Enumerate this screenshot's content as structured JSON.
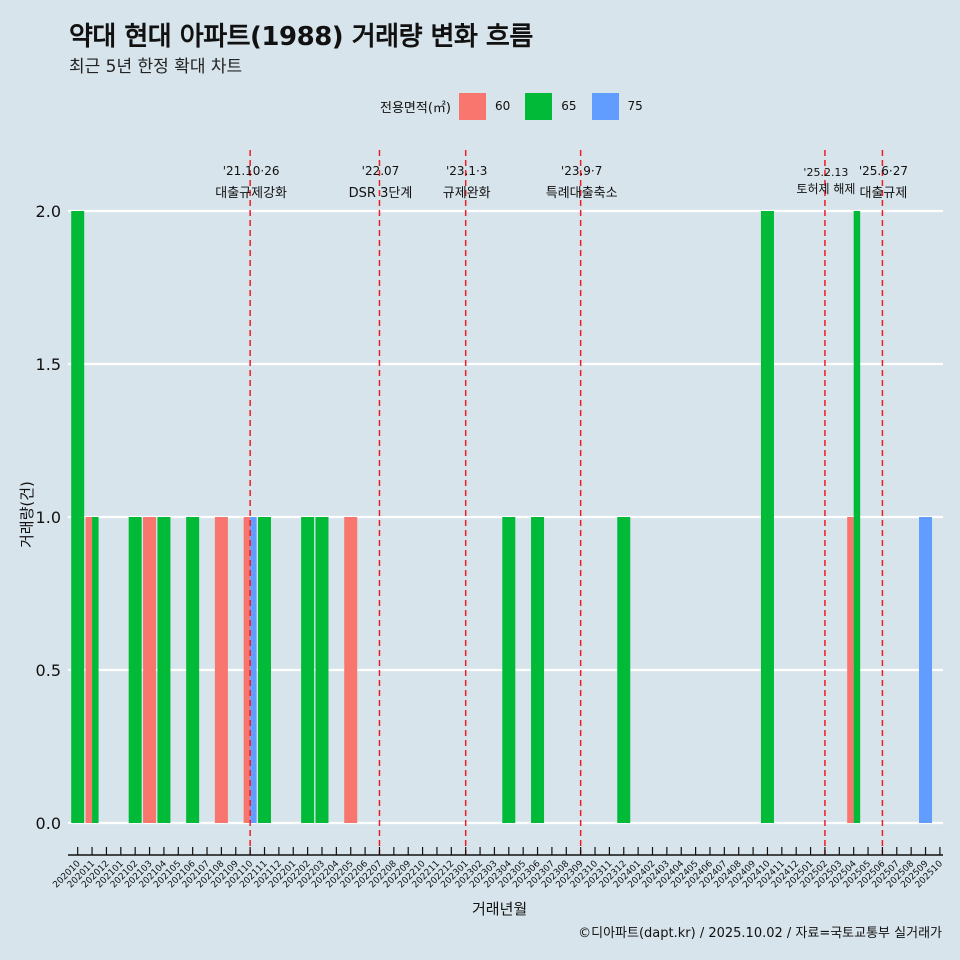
{
  "header": {
    "title": "약대 현대 아파트(1988) 거래량 변화 흐름",
    "subtitle": "최근 5년 한정 확대 차트"
  },
  "legend": {
    "title": "전용면적(㎡)",
    "items": [
      {
        "label": "60",
        "color": "#F8766D"
      },
      {
        "label": "65",
        "color": "#00BA38"
      },
      {
        "label": "75",
        "color": "#619CFF"
      }
    ]
  },
  "axes": {
    "x_title": "거래년월",
    "y_title": "거래량(건)"
  },
  "caption": "©디아파트(dapt.kr) / 2025.10.02 / 자료=국토교통부 실거래가",
  "chart_data": {
    "type": "bar",
    "title": "약대 현대 아파트(1988) 거래량 변화 흐름",
    "subtitle": "최근 5년 한정 확대 차트",
    "xlabel": "거래년월",
    "ylabel": "거래량(건)",
    "ylim": [
      0,
      2
    ],
    "yticks": [
      0.0,
      0.5,
      1.0,
      1.5,
      2.0
    ],
    "grid": "horizontal",
    "legend_position": "top",
    "categories": [
      "202010",
      "202011",
      "202012",
      "202101",
      "202102",
      "202103",
      "202104",
      "202105",
      "202106",
      "202107",
      "202108",
      "202109",
      "202110",
      "202111",
      "202112",
      "202201",
      "202202",
      "202203",
      "202204",
      "202205",
      "202206",
      "202207",
      "202208",
      "202209",
      "202210",
      "202211",
      "202212",
      "202301",
      "202302",
      "202303",
      "202304",
      "202305",
      "202306",
      "202307",
      "202308",
      "202309",
      "202310",
      "202311",
      "202312",
      "202401",
      "202402",
      "202403",
      "202404",
      "202405",
      "202406",
      "202407",
      "202408",
      "202409",
      "202410",
      "202411",
      "202412",
      "202501",
      "202502",
      "202503",
      "202504",
      "202505",
      "202506",
      "202507",
      "202508",
      "202509",
      "202510"
    ],
    "series": [
      {
        "name": "60",
        "color": "#F8766D",
        "points": [
          {
            "x": "202011",
            "y": 1
          },
          {
            "x": "202103",
            "y": 1
          },
          {
            "x": "202108",
            "y": 1
          },
          {
            "x": "202110",
            "y": 1
          },
          {
            "x": "202205",
            "y": 1
          },
          {
            "x": "202504",
            "y": 1
          }
        ]
      },
      {
        "name": "65",
        "color": "#00BA38",
        "points": [
          {
            "x": "202010",
            "y": 2
          },
          {
            "x": "202011",
            "y": 1
          },
          {
            "x": "202102",
            "y": 1
          },
          {
            "x": "202104",
            "y": 1
          },
          {
            "x": "202106",
            "y": 1
          },
          {
            "x": "202111",
            "y": 1
          },
          {
            "x": "202202",
            "y": 1
          },
          {
            "x": "202203",
            "y": 1
          },
          {
            "x": "202304",
            "y": 1
          },
          {
            "x": "202306",
            "y": 1
          },
          {
            "x": "202312",
            "y": 1
          },
          {
            "x": "202410",
            "y": 2
          },
          {
            "x": "202504",
            "y": 2
          }
        ]
      },
      {
        "name": "75",
        "color": "#619CFF",
        "points": [
          {
            "x": "202110",
            "y": 1
          },
          {
            "x": "202509",
            "y": 1
          }
        ]
      }
    ],
    "annotations": [
      {
        "x": "202110",
        "date": "'21.10·26",
        "label": "대출규제강화"
      },
      {
        "x": "202207",
        "date": "'22.07",
        "label": "DSR 3단계"
      },
      {
        "x": "202301",
        "date": "'23.1·3",
        "label": "규제완화"
      },
      {
        "x": "202309",
        "date": "'23.9·7",
        "label": "특례대출축소"
      },
      {
        "x": "202502",
        "date": "'25.2.13",
        "label": "토허제 해제"
      },
      {
        "x": "202506",
        "date": "'25.6·27",
        "label": "대출규제"
      }
    ]
  }
}
